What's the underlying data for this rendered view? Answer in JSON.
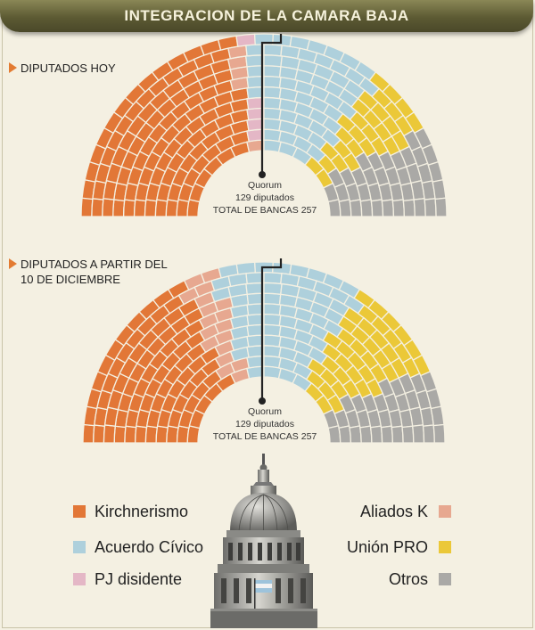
{
  "title": "INTEGRACION DE LA CAMARA BAJA",
  "sections": [
    {
      "label_line1": "DIPUTADOS HOY",
      "label_line2": ""
    },
    {
      "label_line1": "DIPUTADOS A PARTIR DEL",
      "label_line2": "10 DE DICIEMBRE"
    }
  ],
  "quorum": {
    "line1": "Quorum",
    "line2": "129 diputados",
    "line3": "TOTAL DE BANCAS 257"
  },
  "colors": {
    "Kirchnerismo": "#e27737",
    "Aliados K": "#e7a890",
    "PJ disidente": "#e4b7c6",
    "Acuerdo Cívico": "#aed0dc",
    "Unión PRO": "#ebc838",
    "Otros": "#aaa9a6"
  },
  "chart_data": [
    {
      "type": "parliament",
      "title": "DIPUTADOS HOY",
      "total_seats": 257,
      "quorum": 129,
      "series": [
        {
          "name": "Kirchnerismo",
          "values": [
            113
          ]
        },
        {
          "name": "Aliados K",
          "values": [
            5
          ]
        },
        {
          "name": "PJ disidente",
          "values": [
            5
          ]
        },
        {
          "name": "Acuerdo Cívico",
          "values": [
            63
          ]
        },
        {
          "name": "Unión PRO",
          "values": [
            30
          ]
        },
        {
          "name": "Otros",
          "values": [
            41
          ]
        }
      ]
    },
    {
      "type": "parliament",
      "title": "DIPUTADOS A PARTIR DEL 10 DE DICIEMBRE",
      "total_seats": 257,
      "quorum": 129,
      "series": [
        {
          "name": "Kirchnerismo",
          "values": [
            88
          ]
        },
        {
          "name": "Aliados K",
          "values": [
            18
          ]
        },
        {
          "name": "PJ disidente",
          "values": [
            0
          ]
        },
        {
          "name": "Acuerdo Cívico",
          "values": [
            70
          ]
        },
        {
          "name": "Unión PRO",
          "values": [
            45
          ]
        },
        {
          "name": "Otros",
          "values": [
            36
          ]
        }
      ]
    }
  ],
  "legend": [
    {
      "name": "Kirchnerismo"
    },
    {
      "name": "Acuerdo Cívico"
    },
    {
      "name": "PJ disidente"
    },
    {
      "name": "Aliados K"
    },
    {
      "name": "Unión PRO"
    },
    {
      "name": "Otros"
    }
  ]
}
